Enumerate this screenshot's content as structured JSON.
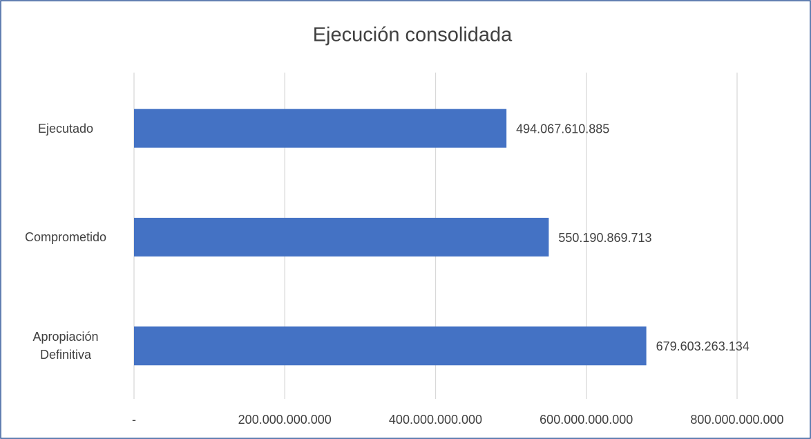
{
  "chart_data": {
    "type": "bar",
    "orientation": "horizontal",
    "title": "Ejecución consolidada",
    "categories": [
      "Ejecutado",
      "Comprometido",
      "Apropiación Definitiva"
    ],
    "values": [
      494067610885,
      550190869713,
      679603263134
    ],
    "value_labels": [
      "494.067.610.885",
      "550.190.869.713",
      "679.603.263.134"
    ],
    "color": "#4472c4",
    "xlim": [
      0,
      800000000000
    ],
    "xticks": [
      {
        "value": 0,
        "label": "-"
      },
      {
        "value": 200000000000,
        "label": "200.000.000.000"
      },
      {
        "value": 400000000000,
        "label": "400.000.000.000"
      },
      {
        "value": 600000000000,
        "label": "600.000.000.000"
      },
      {
        "value": 800000000000,
        "label": "800.000.000.000"
      }
    ],
    "grid": true
  }
}
